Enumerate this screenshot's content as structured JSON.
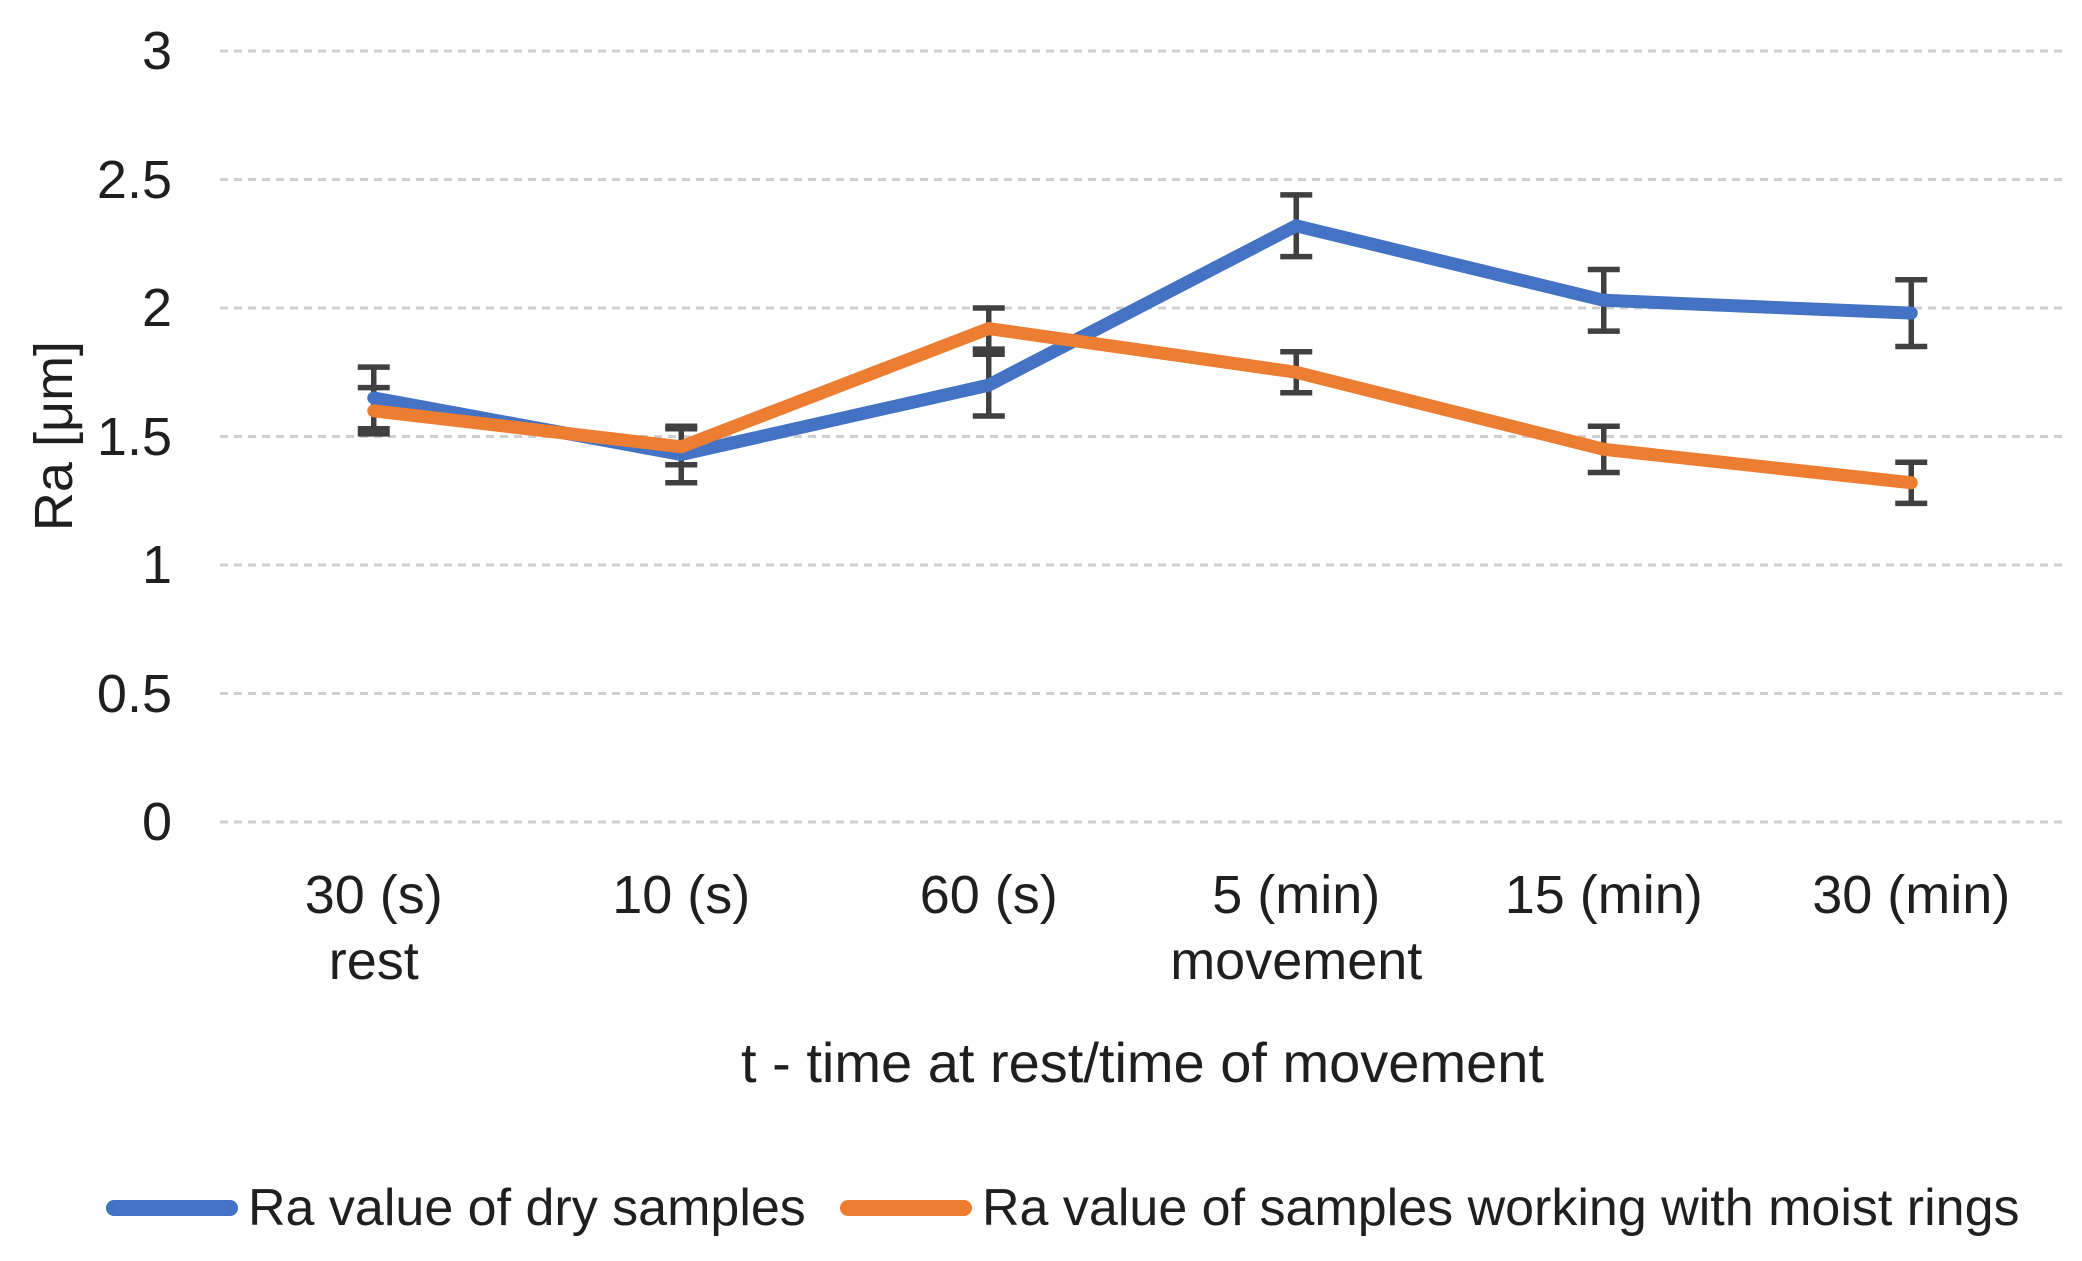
{
  "chart_data": {
    "type": "line",
    "title": "",
    "xlabel": "t - time at rest/time of movement",
    "ylabel": "Ra [μm]",
    "ylim": [
      0,
      3
    ],
    "ytick_values": [
      3,
      2.5,
      2,
      1.5,
      1,
      0.5,
      0
    ],
    "ytick_labels": [
      "3",
      "2.5",
      "2",
      "1.5",
      "1",
      "0.5",
      "0"
    ],
    "categories": [
      "30 (s)",
      "10 (s)",
      "60 (s)",
      "5 (min)",
      "15 (min)",
      "30 (min)"
    ],
    "category_sublabels": [
      "rest",
      "",
      "",
      "movement",
      "",
      ""
    ],
    "grid": true,
    "legend_position": "bottom",
    "gridline_color": "#CFCFCF",
    "error_bar_color": "#404040",
    "text_color": "#1f1f1f",
    "series": [
      {
        "name": "Ra value of dry samples",
        "color": "#4472C4",
        "values": [
          1.65,
          1.43,
          1.7,
          2.32,
          2.03,
          1.98
        ],
        "error": [
          0.12,
          0.11,
          0.12,
          0.12,
          0.12,
          0.13
        ]
      },
      {
        "name": "Ra value of samples working with moist rings",
        "color": "#ED7D31",
        "values": [
          1.6,
          1.46,
          1.92,
          1.75,
          1.45,
          1.32
        ],
        "error": [
          0.09,
          0.07,
          0.08,
          0.08,
          0.09,
          0.08
        ]
      }
    ]
  }
}
